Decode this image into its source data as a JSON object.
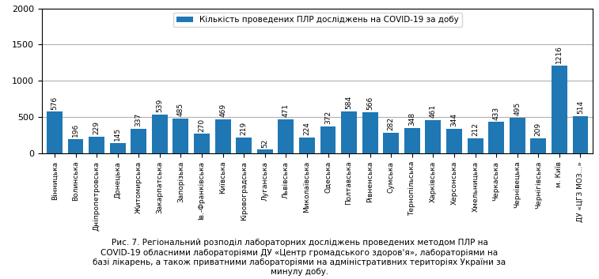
{
  "chart_data": {
    "type": "bar",
    "categories": [
      "Вінницька",
      "Волинська",
      "Дніпропетровська",
      "Донецька",
      "Житомирська",
      "Закарпатська",
      "Запорізька",
      "Ів.-Франківська",
      "Київська",
      "Кіровоградська",
      "Луганська",
      "Львівська",
      "Миколаївська",
      "Одеська",
      "Полтавська",
      "Рівненська",
      "Сумська",
      "Тернопільська",
      "Харківська",
      "Херсонська",
      "Хмельницька",
      "Черкаська",
      "Чернівецька",
      "Чернігівська",
      "м. Київ",
      "ДУ «ЦГЗ МОЗ...»"
    ],
    "series": [
      {
        "name": "Кількість проведених ПЛР досліджень на COVID-19 за добу",
        "values": [
          576,
          196,
          229,
          145,
          337,
          539,
          485,
          270,
          469,
          219,
          52,
          471,
          224,
          372,
          584,
          566,
          282,
          348,
          461,
          344,
          212,
          433,
          495,
          209,
          1216,
          514
        ]
      }
    ],
    "ylim": [
      0,
      2000
    ],
    "yticks": [
      0,
      500,
      1000,
      1500,
      2000
    ],
    "grid": true,
    "legend": "upper center",
    "data_labels": true,
    "annotations": [
      "Рис. 7. Регіональний розподіл лабораторних досліджень проведених методом ПЛР на\nCOVID-19 обласними лабораторіями ДУ «Центр громадського здоров'я», лабораторіями на\nбазі лікарень, а також приватними лабораторіями на адміністративних територіях України за\nминулу добу."
    ]
  }
}
